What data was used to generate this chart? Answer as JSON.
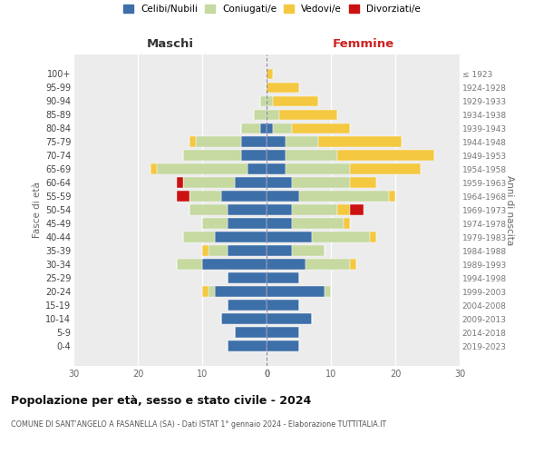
{
  "age_groups": [
    "100+",
    "95-99",
    "90-94",
    "85-89",
    "80-84",
    "75-79",
    "70-74",
    "65-69",
    "60-64",
    "55-59",
    "50-54",
    "45-49",
    "40-44",
    "35-39",
    "30-34",
    "25-29",
    "20-24",
    "15-19",
    "10-14",
    "5-9",
    "0-4"
  ],
  "birth_years": [
    "≤ 1923",
    "1924-1928",
    "1929-1933",
    "1934-1938",
    "1939-1943",
    "1944-1948",
    "1949-1953",
    "1954-1958",
    "1959-1963",
    "1964-1968",
    "1969-1973",
    "1974-1978",
    "1979-1983",
    "1984-1988",
    "1989-1993",
    "1994-1998",
    "1999-2003",
    "2004-2008",
    "2009-2013",
    "2014-2018",
    "2019-2023"
  ],
  "colors": {
    "celibi": "#3d6fa8",
    "coniugati": "#c5d9a0",
    "vedovi": "#f5c842",
    "divorziati": "#cc1111"
  },
  "maschi": {
    "celibi": [
      0,
      0,
      0,
      0,
      1,
      4,
      4,
      3,
      5,
      7,
      6,
      6,
      8,
      6,
      10,
      6,
      8,
      6,
      7,
      5,
      6
    ],
    "coniugati": [
      0,
      0,
      1,
      2,
      3,
      7,
      9,
      14,
      8,
      5,
      6,
      4,
      5,
      3,
      4,
      0,
      1,
      0,
      0,
      0,
      0
    ],
    "vedovi": [
      0,
      0,
      0,
      0,
      0,
      1,
      0,
      1,
      0,
      0,
      0,
      0,
      0,
      1,
      0,
      0,
      1,
      0,
      0,
      0,
      0
    ],
    "divorziati": [
      0,
      0,
      0,
      0,
      0,
      0,
      0,
      0,
      1,
      2,
      0,
      0,
      0,
      0,
      0,
      0,
      0,
      0,
      0,
      0,
      0
    ]
  },
  "femmine": {
    "celibi": [
      0,
      0,
      0,
      0,
      1,
      3,
      3,
      3,
      4,
      5,
      4,
      4,
      7,
      4,
      6,
      5,
      9,
      5,
      7,
      5,
      5
    ],
    "coniugati": [
      0,
      0,
      1,
      2,
      3,
      5,
      8,
      10,
      9,
      14,
      7,
      8,
      9,
      5,
      7,
      0,
      1,
      0,
      0,
      0,
      0
    ],
    "vedovi": [
      1,
      5,
      7,
      9,
      9,
      13,
      15,
      11,
      4,
      1,
      2,
      1,
      1,
      0,
      1,
      0,
      0,
      0,
      0,
      0,
      0
    ],
    "divorziati": [
      0,
      0,
      0,
      0,
      0,
      0,
      0,
      0,
      0,
      0,
      2,
      0,
      0,
      0,
      0,
      0,
      0,
      0,
      0,
      0,
      0
    ]
  },
  "xlim": 30,
  "title": "Popolazione per età, sesso e stato civile - 2024",
  "subtitle": "COMUNE DI SANT'ANGELO A FASANELLA (SA) - Dati ISTAT 1° gennaio 2024 - Elaborazione TUTTITALIA.IT",
  "ylabel_left": "Fasce di età",
  "ylabel_right": "Anni di nascita",
  "header_maschi": "Maschi",
  "header_femmine": "Femmine",
  "legend_labels": [
    "Celibi/Nubili",
    "Coniugati/e",
    "Vedovi/e",
    "Divorziati/e"
  ],
  "bg_color": "#ffffff",
  "plot_bg": "#ececec"
}
